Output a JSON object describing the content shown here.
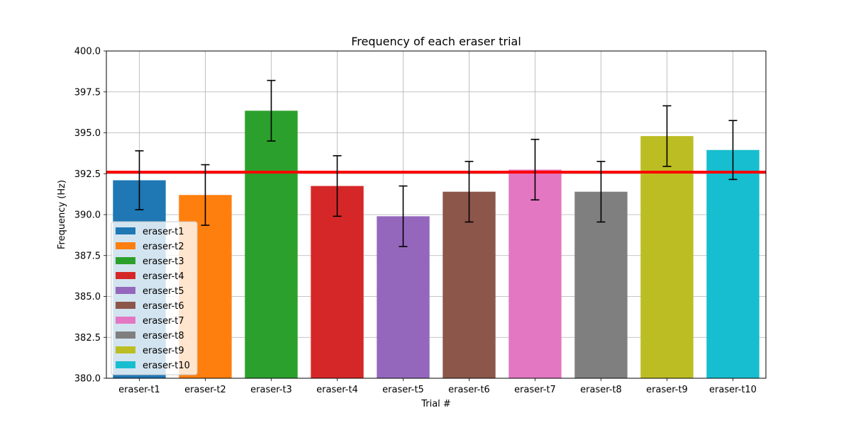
{
  "chart_data": {
    "type": "bar",
    "title": "Frequency of each eraser trial",
    "xlabel": "Trial #",
    "ylabel": "Frequency (Hz)",
    "ylim": [
      380.0,
      400.0
    ],
    "yticks": [
      "380.0",
      "382.5",
      "385.0",
      "387.5",
      "390.0",
      "392.5",
      "395.0",
      "397.5",
      "400.0"
    ],
    "grid": true,
    "legend_position": "lower-left",
    "categories": [
      "eraser-t1",
      "eraser-t2",
      "eraser-t3",
      "eraser-t4",
      "eraser-t5",
      "eraser-t6",
      "eraser-t7",
      "eraser-t8",
      "eraser-t9",
      "eraser-t10"
    ],
    "values": [
      392.1,
      391.2,
      396.35,
      391.75,
      389.9,
      391.4,
      392.75,
      391.4,
      394.8,
      393.95
    ],
    "errors": [
      1.8,
      1.85,
      1.85,
      1.85,
      1.85,
      1.85,
      1.85,
      1.85,
      1.85,
      1.8
    ],
    "colors": [
      "#1f77b4",
      "#ff7f0e",
      "#2ca02c",
      "#d62728",
      "#9467bd",
      "#8c564b",
      "#e377c2",
      "#7f7f7f",
      "#bcbd22",
      "#17becf"
    ],
    "reference_line": {
      "value": 392.6,
      "color": "#ff0000"
    }
  }
}
